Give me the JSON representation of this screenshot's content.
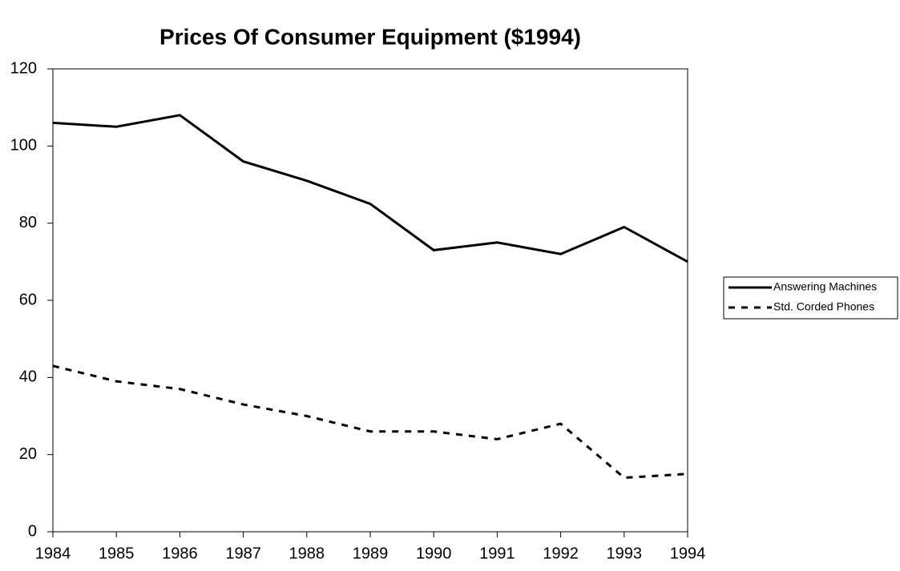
{
  "chart_data": {
    "type": "line",
    "title": "Prices Of Consumer Equipment ($1994)",
    "x": [
      1984,
      1985,
      1986,
      1987,
      1988,
      1989,
      1990,
      1991,
      1992,
      1993,
      1994
    ],
    "series": [
      {
        "name": "Answering Machines",
        "color": "#000000",
        "dash": "solid",
        "values": [
          106,
          105,
          108,
          96,
          91,
          85,
          73,
          75,
          72,
          79,
          70
        ]
      },
      {
        "name": "Std. Corded Phones",
        "color": "#000000",
        "dash": "dashed",
        "values": [
          43,
          39,
          37,
          33,
          30,
          26,
          26,
          24,
          28,
          14,
          15
        ]
      }
    ],
    "xlim": [
      1984,
      1994
    ],
    "xticks": [
      1984,
      1985,
      1986,
      1987,
      1988,
      1989,
      1990,
      1991,
      1992,
      1993,
      1994
    ],
    "ylim": [
      0,
      120
    ],
    "yticks": [
      0,
      20,
      40,
      60,
      80,
      100,
      120
    ],
    "grid": false,
    "legend": "right"
  }
}
